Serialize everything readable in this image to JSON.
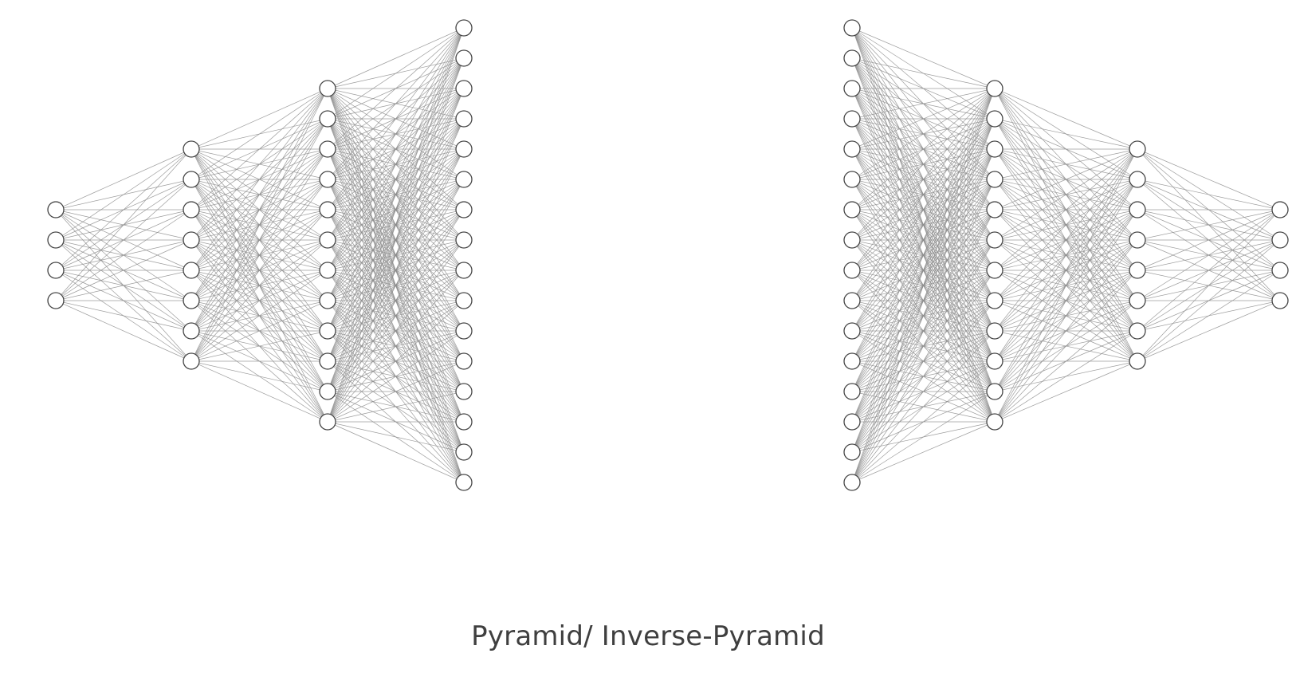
{
  "caption": "Pyramid/ Inverse-Pyramid",
  "networks": [
    {
      "name": "pyramid",
      "layer_sizes": [
        4,
        8,
        12,
        16
      ]
    },
    {
      "name": "inverse-pyramid",
      "layer_sizes": [
        16,
        12,
        8,
        4
      ]
    }
  ],
  "colors": {
    "edge": "#8c8c8c",
    "node_stroke": "#444444",
    "node_fill": "#ffffff",
    "caption": "#3f3f3f"
  }
}
